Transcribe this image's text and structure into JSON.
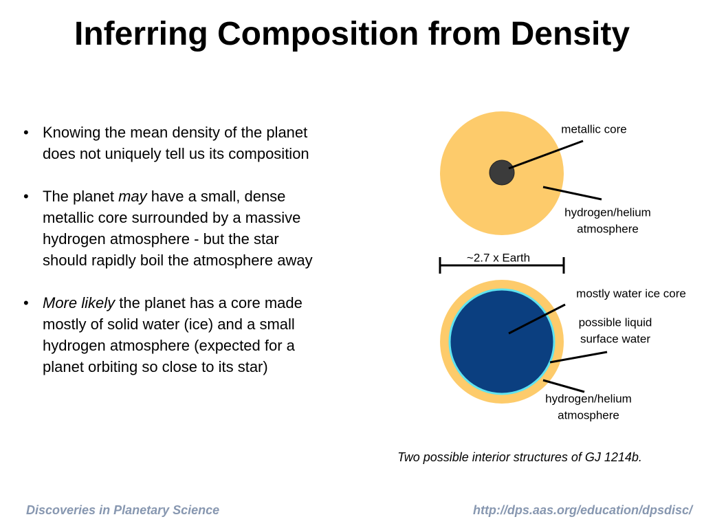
{
  "title": "Inferring Composition from Density",
  "bullets": [
    [
      [
        {
          "text": "Knowing the mean density of the planet",
          "italic": false
        }
      ],
      [
        {
          "text": "does not uniquely tell us its composition",
          "italic": false
        }
      ]
    ],
    [
      [
        {
          "text": "The planet ",
          "italic": false
        },
        {
          "text": "may",
          "italic": true
        },
        {
          "text": " have a small, dense",
          "italic": false
        }
      ],
      [
        {
          "text": "metallic core surrounded by a massive",
          "italic": false
        }
      ],
      [
        {
          "text": "hydrogen atmosphere - but the star",
          "italic": false
        }
      ],
      [
        {
          "text": "should rapidly boil the atmosphere away",
          "italic": false
        }
      ]
    ],
    [
      [
        {
          "text": "More likely",
          "italic": true
        },
        {
          "text": " the planet has a core made",
          "italic": false
        }
      ],
      [
        {
          "text": "mostly of solid water (ice) and a small",
          "italic": false
        }
      ],
      [
        {
          "text": "hydrogen atmosphere (expected for a",
          "italic": false
        }
      ],
      [
        {
          "text": "planet orbiting so close to its star)",
          "italic": false
        }
      ]
    ]
  ],
  "diagram": {
    "planet1": {
      "core_label": [
        "metallic core"
      ],
      "atmosphere_label": [
        "hydrogen/helium",
        "atmosphere"
      ]
    },
    "scale_label": "~2.7 x Earth",
    "planet2": {
      "core_label": [
        "mostly water ice core"
      ],
      "surface_label": [
        "possible liquid",
        "surface water"
      ],
      "atmosphere_label": [
        "hydrogen/helium",
        "atmosphere"
      ]
    },
    "caption": "Two possible interior structures of GJ 1214b."
  },
  "footer": {
    "left": "Discoveries in Planetary Science",
    "right": "http://dps.aas.org/education/dpsdisc/"
  }
}
